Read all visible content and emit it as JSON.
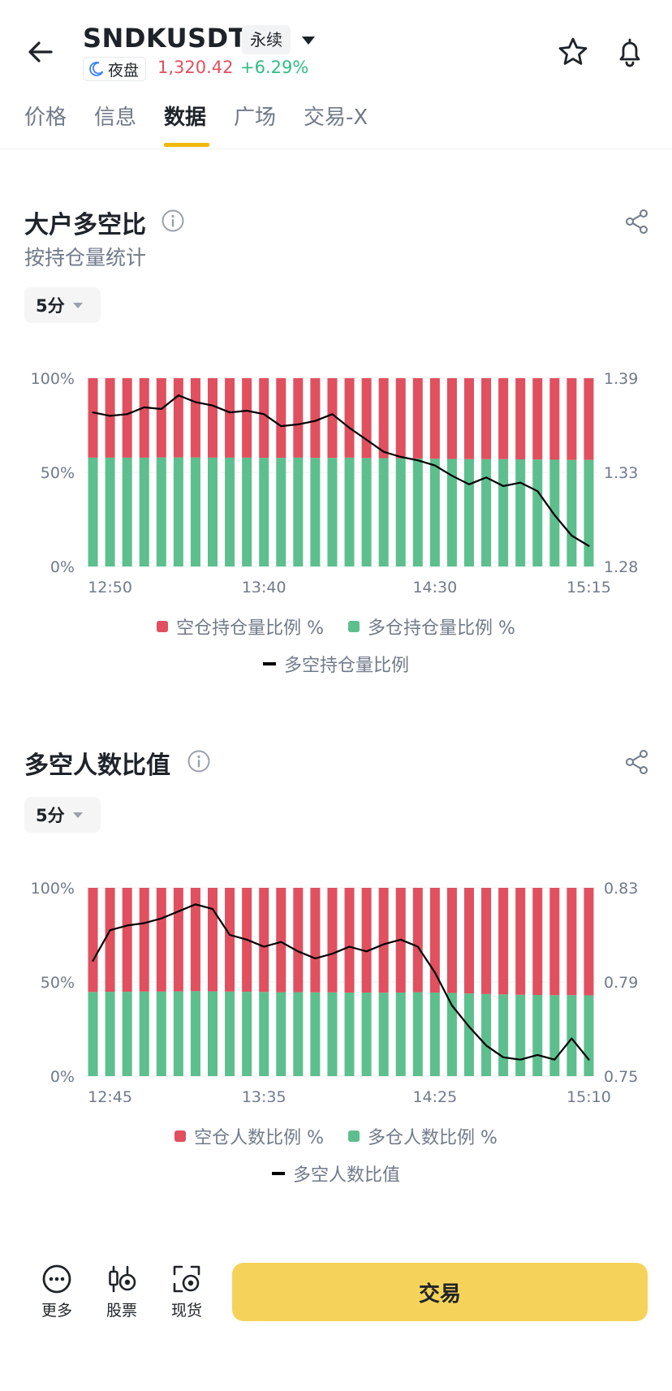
{
  "header": {
    "symbol": "SNDKUSDT",
    "contract_type": "永续",
    "session": "夜盘",
    "price": "1,320.42",
    "change": "+6.29%"
  },
  "tabs": [
    {
      "label": "价格",
      "active": false
    },
    {
      "label": "信息",
      "active": false
    },
    {
      "label": "数据",
      "active": true
    },
    {
      "label": "广场",
      "active": false
    },
    {
      "label": "交易-X",
      "active": false
    }
  ],
  "section1": {
    "title": "大户多空比",
    "subtitle": "按持仓量统计",
    "period": "5分",
    "legend": [
      "空仓持仓量比例 %",
      "多仓持仓量比例 %",
      "多空持仓量比例"
    ]
  },
  "section2": {
    "title": "多空人数比值",
    "period": "5分",
    "legend": [
      "空仓人数比例 %",
      "多仓人数比例 %",
      "多空人数比值"
    ]
  },
  "bottom_bar": {
    "items": [
      {
        "label": "更多",
        "icon": "more-icon"
      },
      {
        "label": "股票",
        "icon": "stock-icon"
      },
      {
        "label": "现货",
        "icon": "spot-icon"
      }
    ],
    "trade_label": "交易"
  },
  "colors": {
    "short": "#e0505f",
    "long": "#5dbf8e",
    "ratio_line": "#000000",
    "accent": "#f0b90b",
    "trade_button": "#f5d35a"
  },
  "chart_data": [
    {
      "type": "bar",
      "stacked": true,
      "x_ticks": [
        "12:50",
        "13:40",
        "14:30",
        "15:15"
      ],
      "y_left_ticks": [
        "0%",
        "50%",
        "100%"
      ],
      "y_right_ticks": [
        "1.28",
        "1.33",
        "1.39"
      ],
      "y_left_range": [
        0,
        100
      ],
      "y_right_range": [
        1.28,
        1.39
      ],
      "series": [
        {
          "name": "多仓持仓量比例 %",
          "color": "#5dbf8e",
          "values": [
            57.8,
            57.8,
            57.8,
            57.8,
            57.9,
            57.9,
            57.9,
            57.8,
            57.8,
            57.8,
            57.7,
            57.7,
            57.8,
            57.7,
            57.7,
            57.8,
            57.6,
            57.5,
            57.4,
            57.3,
            57.2,
            57.1,
            57.0,
            57.0,
            57.0,
            56.9,
            56.8,
            56.7,
            56.6,
            56.6
          ]
        },
        {
          "name": "空仓持仓量比例 %",
          "color": "#e0505f",
          "values": [
            42.2,
            42.2,
            42.2,
            42.2,
            42.1,
            42.1,
            42.1,
            42.2,
            42.2,
            42.2,
            42.3,
            42.3,
            42.2,
            42.3,
            42.3,
            42.2,
            42.4,
            42.5,
            42.6,
            42.7,
            42.8,
            42.9,
            43.0,
            43.0,
            43.0,
            43.1,
            43.2,
            43.3,
            43.4,
            43.4
          ]
        },
        {
          "name": "多空持仓量比例",
          "color": "#000000",
          "axis": "right",
          "values": [
            1.37,
            1.368,
            1.369,
            1.373,
            1.372,
            1.38,
            1.376,
            1.374,
            1.37,
            1.371,
            1.369,
            1.362,
            1.363,
            1.365,
            1.369,
            1.361,
            1.354,
            1.347,
            1.344,
            1.342,
            1.339,
            1.333,
            1.328,
            1.332,
            1.327,
            1.329,
            1.324,
            1.31,
            1.298,
            1.292
          ]
        }
      ]
    },
    {
      "type": "bar",
      "stacked": true,
      "x_ticks": [
        "12:45",
        "13:35",
        "14:25",
        "15:10"
      ],
      "y_left_ticks": [
        "0%",
        "50%",
        "100%"
      ],
      "y_right_ticks": [
        "0.75",
        "0.79",
        "0.83"
      ],
      "y_left_range": [
        0,
        100
      ],
      "y_right_range": [
        0.75,
        0.83
      ],
      "series": [
        {
          "name": "多仓人数比例 %",
          "color": "#5dbf8e",
          "values": [
            44.7,
            44.8,
            44.8,
            44.9,
            44.9,
            45.0,
            45.1,
            45.0,
            44.9,
            44.8,
            44.7,
            44.6,
            44.6,
            44.5,
            44.5,
            44.4,
            44.4,
            44.3,
            44.4,
            44.6,
            44.4,
            44.2,
            43.9,
            43.6,
            43.4,
            43.2,
            43.1,
            43.0,
            43.0,
            42.9
          ]
        },
        {
          "name": "空仓人数比例 %",
          "color": "#e0505f",
          "values": [
            55.3,
            55.2,
            55.2,
            55.1,
            55.1,
            55.0,
            54.9,
            55.0,
            55.1,
            55.2,
            55.3,
            55.4,
            55.4,
            55.5,
            55.5,
            55.6,
            55.6,
            55.7,
            55.6,
            55.4,
            55.6,
            55.8,
            56.1,
            56.4,
            56.6,
            56.8,
            56.9,
            57.0,
            57.0,
            57.1
          ]
        },
        {
          "name": "多空人数比值",
          "color": "#000000",
          "axis": "right",
          "values": [
            0.799,
            0.812,
            0.814,
            0.815,
            0.817,
            0.82,
            0.823,
            0.821,
            0.81,
            0.808,
            0.805,
            0.807,
            0.803,
            0.8,
            0.802,
            0.805,
            0.803,
            0.806,
            0.808,
            0.805,
            0.794,
            0.78,
            0.771,
            0.763,
            0.758,
            0.757,
            0.759,
            0.757,
            0.766,
            0.757
          ]
        }
      ]
    }
  ]
}
